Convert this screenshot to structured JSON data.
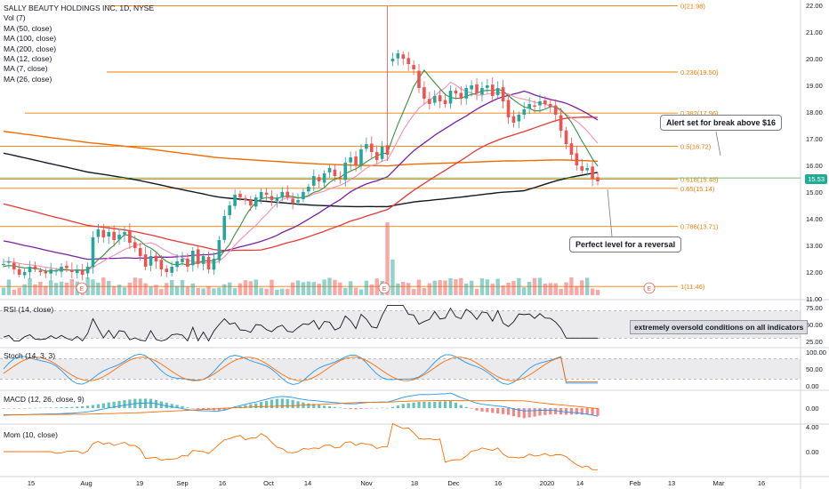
{
  "legend": {
    "title": "SALLY BEAUTY HOLDINGS INC, 1D, NYSE",
    "items": [
      "Vol (7)",
      "MA (50, close)",
      "MA (100, close)",
      "MA (200, close)",
      "MA (12, close)",
      "MA (7, close)",
      "MA (26, close)"
    ]
  },
  "panes": {
    "rsi": "RSI (14, close)",
    "stoch": "Stoch (14, 3, 3)",
    "macd": "MACD (12, 26, close, 9)",
    "mom": "Mom (10, close)"
  },
  "annotations": {
    "alert": "Alert set for break above $16",
    "reversal": "Perfect level for a reversal",
    "oversold": "extremely oversold conditions on all indicators"
  },
  "current_price": "15.53",
  "earnings_marker": "E",
  "colors": {
    "up": "#26a69a",
    "down": "#ef5350",
    "fib": "#f57c00",
    "ma7": "#388e3c",
    "ma12": "#f48fb1",
    "ma26": "#7b1fa2",
    "ma50": "#e53935",
    "ma100": "#131722",
    "ma200": "#ef6c00",
    "price_line": "#4caf50",
    "osc_blue": "#2196f3",
    "osc_orange": "#ff6d00"
  },
  "chart_data": {
    "type": "candlestick",
    "symbol": "SALLY BEAUTY HOLDINGS INC",
    "timeframe": "1D",
    "exchange": "NYSE",
    "y_axis": {
      "min": 11,
      "max": 22,
      "ticks": [
        "22.00",
        "21.00",
        "20.00",
        "19.00",
        "18.00",
        "17.00",
        "16.00",
        "15.00",
        "14.00",
        "13.00",
        "12.00",
        "11.00"
      ]
    },
    "x_ticks": [
      "15",
      "Aug",
      "19",
      "Sep",
      "16",
      "Oct",
      "14",
      "Nov",
      "18",
      "Dec",
      "16",
      "2020",
      "14",
      "Feb",
      "13",
      "Mar",
      "16"
    ],
    "fib_levels": [
      {
        "label": "0(21.98)",
        "value": 21.98
      },
      {
        "label": "0.236(19.50)",
        "value": 19.5
      },
      {
        "label": "0.382(17.96)",
        "value": 17.96
      },
      {
        "label": "0.5(16.72)",
        "value": 16.72
      },
      {
        "label": "0.618(15.48)",
        "value": 15.48
      },
      {
        "label": "0.65(15.14)",
        "value": 15.14
      },
      {
        "label": "0.786(13.71)",
        "value": 13.71
      },
      {
        "label": "1(11.46)",
        "value": 11.46
      }
    ],
    "closes": [
      12.3,
      12.4,
      12.1,
      11.9,
      12.0,
      12.2,
      12.1,
      12.0,
      11.95,
      12.1,
      12.05,
      12.2,
      12.15,
      12.0,
      12.1,
      11.9,
      12.2,
      13.3,
      13.6,
      13.3,
      13.5,
      13.2,
      13.4,
      13.5,
      13.1,
      12.9,
      12.6,
      12.2,
      12.6,
      12.4,
      12.1,
      12.0,
      12.2,
      12.4,
      12.5,
      12.2,
      12.8,
      12.3,
      12.6,
      12.1,
      12.5,
      13.2,
      14.1,
      14.5,
      14.9,
      14.8,
      14.7,
      14.5,
      14.8,
      15.0,
      14.9,
      14.7,
      14.8,
      15.0,
      14.8,
      14.6,
      14.7,
      15.0,
      15.2,
      15.6,
      15.4,
      15.7,
      15.9,
      15.6,
      15.5,
      16.1,
      16.3,
      16.0,
      16.6,
      16.8,
      16.5,
      16.2,
      16.7,
      16.4,
      20.0,
      20.2,
      20.0,
      19.8,
      19.6,
      18.9,
      18.5,
      18.3,
      18.6,
      18.4,
      18.3,
      18.8,
      18.7,
      18.5,
      18.9,
      19.0,
      18.7,
      18.9,
      19.0,
      18.6,
      18.9,
      18.4,
      17.8,
      17.6,
      17.9,
      18.1,
      18.3,
      18.2,
      18.4,
      18.3,
      18.2,
      17.9,
      17.3,
      16.8,
      16.4,
      16.0,
      15.8,
      15.9,
      15.5,
      15.4
    ],
    "rsi_range": [
      25,
      75
    ],
    "stoch_range": [
      0,
      100
    ],
    "macd_ticks": [
      "0.00"
    ],
    "mom_ticks": [
      "4.00",
      "0.00"
    ]
  }
}
